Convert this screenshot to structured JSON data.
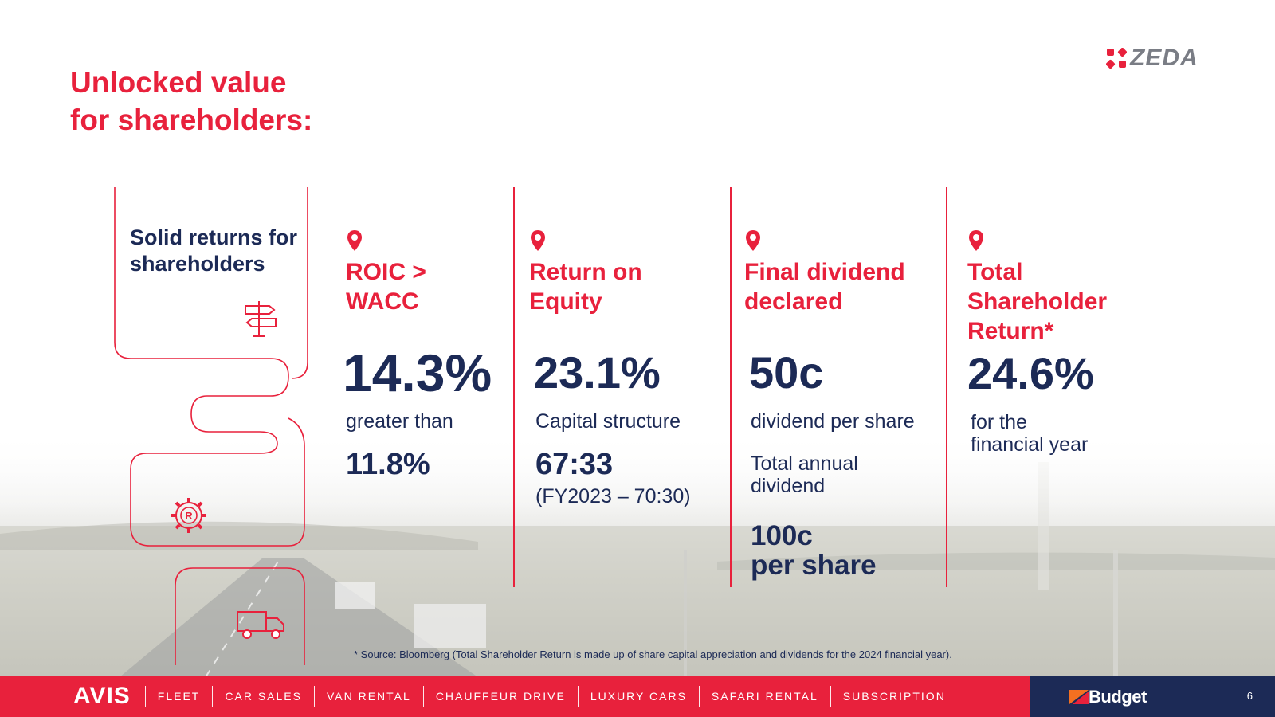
{
  "brand": {
    "logo_text": "ZEDA",
    "accent_color": "#e8213c",
    "navy_color": "#1c2a56"
  },
  "slide": {
    "title_line1": "Unlocked value",
    "title_line2": "for shareholders:",
    "intro_line1": "Solid returns for",
    "intro_line2": "shareholders",
    "icons": [
      "signpost-icon",
      "gear-r-icon",
      "truck-icon"
    ]
  },
  "metrics": [
    {
      "heading_line1": "ROIC >",
      "heading_line2": "WACC",
      "value": "14.3%",
      "sub1": "greater than",
      "sub_value": "11.8%"
    },
    {
      "heading_line1": "Return on",
      "heading_line2": "Equity",
      "value": "23.1%",
      "sub1": "Capital structure",
      "sub_value": "67:33",
      "sub2": "(FY2023 – 70:30)"
    },
    {
      "heading_line1": "Final dividend",
      "heading_line2": "declared",
      "value": "50c",
      "sub1": "dividend per share",
      "sub2_line1": "Total annual",
      "sub2_line2": "dividend",
      "sub_value_line1": "100c",
      "sub_value_line2": "per share"
    },
    {
      "heading_line1": "Total",
      "heading_line2": "Shareholder",
      "heading_line3": "Return*",
      "value": "24.6%",
      "sub1_line1": "for the",
      "sub1_line2": "financial year"
    }
  ],
  "footnote": "* Source: Bloomberg (Total Shareholder Return is made up of share capital appreciation and dividends for the 2024 financial year).",
  "footer": {
    "avis": "AVIS",
    "nav": [
      "FLEET",
      "CAR SALES",
      "VAN RENTAL",
      "CHAUFFEUR DRIVE",
      "LUXURY CARS",
      "SAFARI RENTAL",
      "SUBSCRIPTION"
    ],
    "budget": "Budget",
    "page_number": "6"
  }
}
